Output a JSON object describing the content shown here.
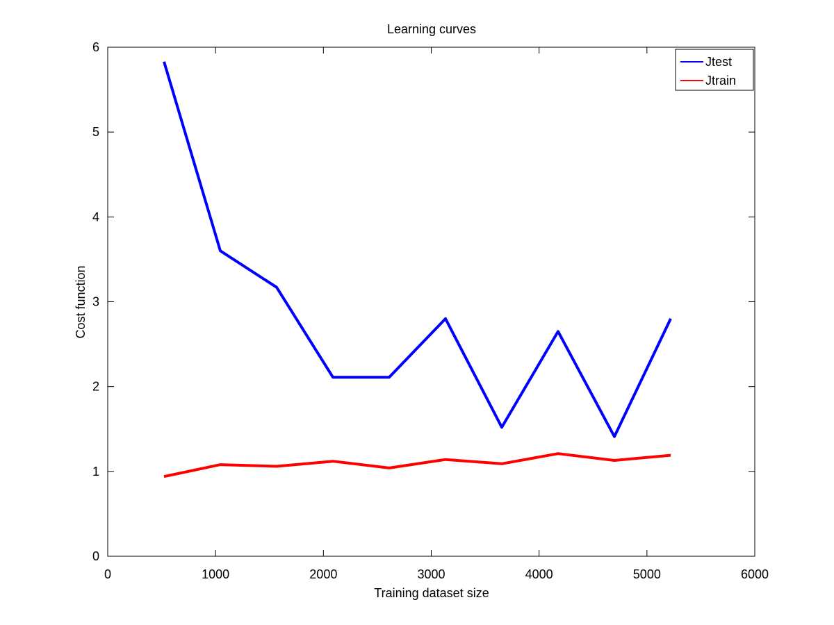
{
  "chart_data": {
    "type": "line",
    "title": "Learning curves",
    "xlabel": "Training dataset size",
    "ylabel": "Cost function",
    "xlim": [
      0,
      6000
    ],
    "ylim": [
      0,
      6
    ],
    "xticks": [
      0,
      1000,
      2000,
      3000,
      4000,
      5000,
      6000
    ],
    "yticks": [
      0,
      1,
      2,
      3,
      4,
      5,
      6
    ],
    "x": [
      522,
      1044,
      1566,
      2088,
      2610,
      3132,
      3654,
      4176,
      4698,
      5220
    ],
    "series": [
      {
        "name": "Jtest",
        "color": "#0000ff",
        "values": [
          5.83,
          3.6,
          3.17,
          2.11,
          2.11,
          2.8,
          1.52,
          2.65,
          1.41,
          2.8
        ]
      },
      {
        "name": "Jtrain",
        "color": "#ff0000",
        "values": [
          0.94,
          1.08,
          1.06,
          1.12,
          1.04,
          1.14,
          1.09,
          1.21,
          1.13,
          1.19
        ]
      }
    ],
    "grid": false,
    "legend_position": "top-right"
  }
}
